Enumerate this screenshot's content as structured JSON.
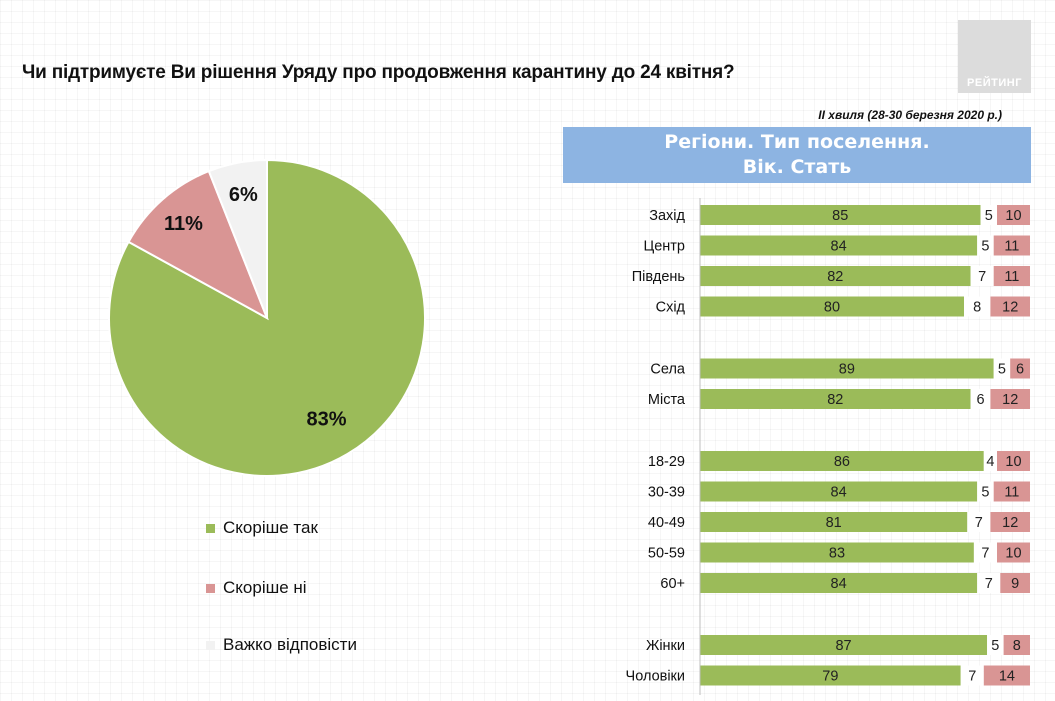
{
  "title": "Чи підтримуєте Ви рішення Уряду про продовження карантину до 24 квітня?",
  "logo_text": "РЕЙТИНГ",
  "subtitle": "ІІ хвиля (28-30 березня 2020 р.)",
  "banner": {
    "line1": "Регіони. Тип поселення.",
    "line2": "Вік. Стать"
  },
  "colors": {
    "yes": "#9bbb59",
    "no": "#d99594",
    "hard": "#f2f2f2",
    "banner": "#8db4e2"
  },
  "legend": [
    "Скоріше  так",
    "Скоріше  ні",
    "Важко відповісти"
  ],
  "chart_data": [
    {
      "type": "pie",
      "series": [
        {
          "name": "Скоріше  так",
          "value": 83,
          "label": "83%"
        },
        {
          "name": "Скоріше  ні",
          "value": 11,
          "label": "11%"
        },
        {
          "name": "Важко відповісти",
          "value": 6,
          "label": "6%"
        }
      ]
    },
    {
      "type": "bar",
      "stacked": true,
      "orientation": "horizontal",
      "categories": [
        "Захід",
        "Центр",
        "Південь",
        "Схід",
        "Села",
        "Міста",
        "18-29",
        "30-39",
        "40-49",
        "50-59",
        "60+",
        "Жінки",
        "Чоловіки"
      ],
      "groups": [
        4,
        2,
        5,
        2
      ],
      "series": [
        {
          "name": "Скоріше  так",
          "values": [
            85,
            84,
            82,
            80,
            89,
            82,
            86,
            84,
            81,
            83,
            84,
            87,
            79
          ]
        },
        {
          "name": "Важко відповісти",
          "values": [
            5,
            5,
            7,
            8,
            5,
            6,
            4,
            5,
            7,
            7,
            7,
            5,
            7
          ]
        },
        {
          "name": "Скоріше  ні",
          "values": [
            10,
            11,
            11,
            12,
            6,
            12,
            10,
            11,
            12,
            10,
            9,
            8,
            14
          ]
        }
      ],
      "xlim": [
        0,
        100
      ]
    }
  ]
}
